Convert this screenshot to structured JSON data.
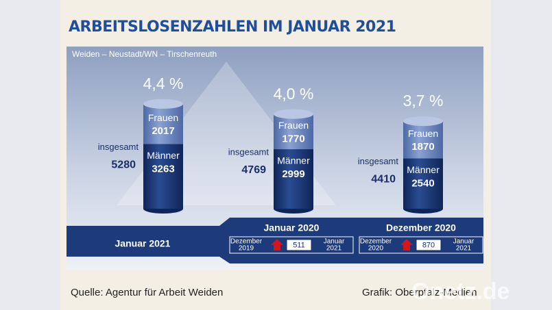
{
  "chart_data": {
    "type": "bar",
    "stacked": true,
    "title": "ARBEITSLOSENZAHLEN IM JANUAR 2021",
    "subtitle": "Weiden – Neustadt/WN – Tirschenreuth",
    "categories": [
      "Januar 2021",
      "Januar 2020",
      "Dezember 2020"
    ],
    "series": [
      {
        "name": "Männer",
        "color": "#1d3a7a",
        "values": [
          3263,
          2999,
          2540
        ]
      },
      {
        "name": "Frauen",
        "color": "#6884bd",
        "values": [
          2017,
          1770,
          1870
        ]
      }
    ],
    "total_label": "insgesamt",
    "totals": [
      5280,
      4769,
      4410
    ],
    "rates": [
      4.4,
      4.0,
      3.7
    ],
    "rate_labels": [
      "4,4 %",
      "4,0 %",
      "3,7 %"
    ],
    "comparisons": [
      {
        "period": "Januar 2020",
        "from": [
          "Dezember",
          "2019"
        ],
        "change": 511,
        "to": [
          "Januar",
          "2021"
        ]
      },
      {
        "period": "Dezember 2020",
        "from": [
          "Dezember",
          "2020"
        ],
        "change": 870,
        "to": [
          "Januar",
          "2021"
        ]
      }
    ],
    "source": "Quelle: Agentur für Arbeit Weiden",
    "credit": "Grafik: Oberpfalz-Medien",
    "watermark": "Onetz.de"
  }
}
